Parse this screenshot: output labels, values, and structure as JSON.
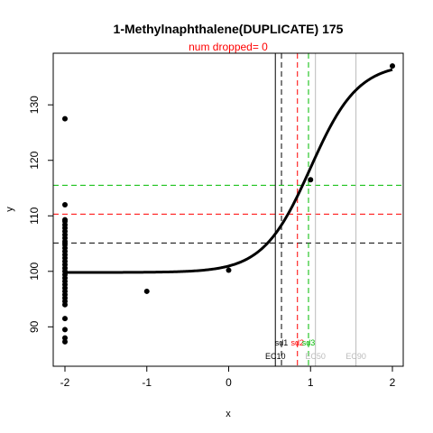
{
  "chart_data": {
    "type": "scatter",
    "title": "1-Methylnaphthalene(DUPLICATE) 175",
    "subtitle": "num dropped= 0",
    "xlabel": "x",
    "ylabel": "y",
    "xlim": [
      -2.0,
      2.0
    ],
    "ylim": [
      85.5,
      138.0
    ],
    "x_ticks": [
      "-2",
      "-1",
      "0",
      "1",
      "2"
    ],
    "y_ticks": [
      "90",
      "100",
      "110",
      "120",
      "130"
    ],
    "grid": false,
    "points": [
      {
        "x": -2,
        "y": 127.5
      },
      {
        "x": -2,
        "y": 112.0
      },
      {
        "x": -2,
        "y": 109.3
      },
      {
        "x": -2,
        "y": 109.0
      },
      {
        "x": -2,
        "y": 108.4
      },
      {
        "x": -2,
        "y": 107.8
      },
      {
        "x": -2,
        "y": 107.2
      },
      {
        "x": -2,
        "y": 106.6
      },
      {
        "x": -2,
        "y": 106.0
      },
      {
        "x": -2,
        "y": 105.4
      },
      {
        "x": -2,
        "y": 104.8
      },
      {
        "x": -2,
        "y": 104.2
      },
      {
        "x": -2,
        "y": 103.6
      },
      {
        "x": -2,
        "y": 103.0
      },
      {
        "x": -2,
        "y": 102.4
      },
      {
        "x": -2,
        "y": 101.8
      },
      {
        "x": -2,
        "y": 101.2
      },
      {
        "x": -2,
        "y": 100.6
      },
      {
        "x": -2,
        "y": 100.0
      },
      {
        "x": -2,
        "y": 99.4
      },
      {
        "x": -2,
        "y": 98.8
      },
      {
        "x": -2,
        "y": 98.2
      },
      {
        "x": -2,
        "y": 97.6
      },
      {
        "x": -2,
        "y": 97.0
      },
      {
        "x": -2,
        "y": 96.4
      },
      {
        "x": -2,
        "y": 95.8
      },
      {
        "x": -2,
        "y": 95.2
      },
      {
        "x": -2,
        "y": 94.6
      },
      {
        "x": -2,
        "y": 94.0
      },
      {
        "x": -2,
        "y": 91.5
      },
      {
        "x": -2,
        "y": 89.5
      },
      {
        "x": -2,
        "y": 88.0
      },
      {
        "x": -2,
        "y": 87.3
      },
      {
        "x": -1,
        "y": 96.4
      },
      {
        "x": 0,
        "y": 100.2
      },
      {
        "x": 1,
        "y": 116.5
      },
      {
        "x": 2,
        "y": 137.0
      }
    ],
    "fit_curve": {
      "bottom": 99.8,
      "top": 137.5,
      "ec50": 1.0,
      "hill_slope": 1.5
    },
    "hlines": [
      {
        "y": 105.1,
        "color": "#000000",
        "style": "dashed"
      },
      {
        "y": 110.3,
        "color": "#ff0000",
        "style": "dashed"
      },
      {
        "y": 115.5,
        "color": "#00bb00",
        "style": "dashed"
      }
    ],
    "vlines": [
      {
        "x": 0.57,
        "color": "#000000",
        "style": "solid",
        "label": "EC10"
      },
      {
        "x": 0.645,
        "color": "#000000",
        "style": "dashed",
        "label": "sd1"
      },
      {
        "x": 0.84,
        "color": "#ff0000",
        "style": "dashed",
        "label": "sd2"
      },
      {
        "x": 0.975,
        "color": "#00bb00",
        "style": "dashed",
        "label": "sd3"
      },
      {
        "x": 1.06,
        "color": "#bbbbbb",
        "style": "solid",
        "label": "EC50"
      },
      {
        "x": 1.555,
        "color": "#bbbbbb",
        "style": "solid",
        "label": "EC90"
      }
    ]
  }
}
